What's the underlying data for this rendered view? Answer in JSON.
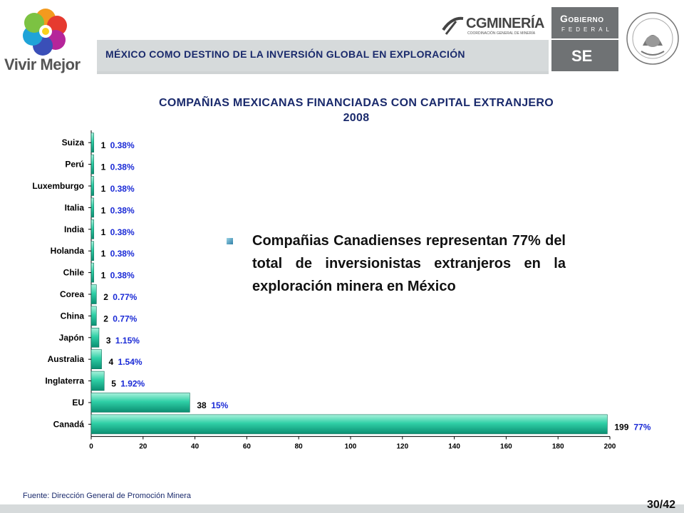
{
  "header": {
    "left_logo_text": "Vivir Mejor",
    "banner_title": "MÉXICO COMO DESTINO DE LA INVERSIÓN GLOBAL EN EXPLORACIÓN",
    "cg_logo_text": "CGMINERÍA",
    "cg_logo_sub": "COORDINACIÓN GENERAL DE MINERÍA",
    "gob_title": "Gobierno",
    "gob_sub": "FEDERAL",
    "se_text": "SE",
    "seal_text": "ESTADOS UNIDOS MEXICANOS"
  },
  "chart_data": {
    "type": "bar",
    "orientation": "horizontal",
    "title": "COMPAÑIAS MEXICANAS FINANCIADAS CON CAPITAL EXTRANJERO",
    "subtitle": "2008",
    "categories": [
      "Suiza",
      "Perú",
      "Luxemburgo",
      "Italia",
      "India",
      "Holanda",
      "Chile",
      "Corea",
      "China",
      "Japón",
      "Australia",
      "Inglaterra",
      "EU",
      "Canadá"
    ],
    "values": [
      1,
      1,
      1,
      1,
      1,
      1,
      1,
      2,
      2,
      3,
      4,
      5,
      38,
      199
    ],
    "percent_labels": [
      "0.38%",
      "0.38%",
      "0.38%",
      "0.38%",
      "0.38%",
      "0.38%",
      "0.38%",
      "0.77%",
      "0.77%",
      "1.15%",
      "1.54%",
      "1.92%",
      "15%",
      "77%"
    ],
    "xlim": [
      0,
      200
    ],
    "xticks": [
      0,
      20,
      40,
      60,
      80,
      100,
      120,
      140,
      160,
      180,
      200
    ],
    "grid": false,
    "bar_color": "#1fbf9a"
  },
  "callout": {
    "text": "Compañias Canadienses representan 77% del total de inversionistas extranjeros en la exploración minera en México"
  },
  "footer": {
    "source": "Fuente: Dirección General de Promoción Minera",
    "page": "30/42"
  }
}
